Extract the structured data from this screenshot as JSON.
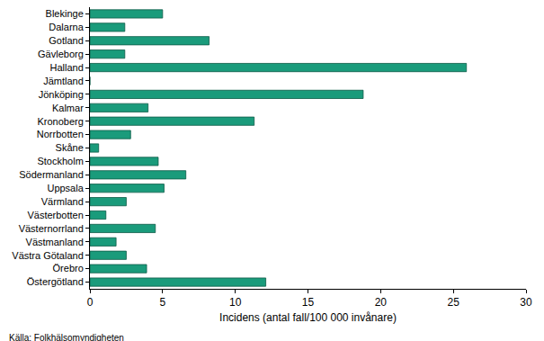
{
  "chart_data": {
    "type": "bar",
    "orientation": "horizontal",
    "categories": [
      "Blekinge",
      "Dalarna",
      "Gotland",
      "Gävleborg",
      "Halland",
      "Jämtland",
      "Jönköping",
      "Kalmar",
      "Kronoberg",
      "Norrbotten",
      "Skåne",
      "Stockholm",
      "Södermanland",
      "Uppsala",
      "Värmland",
      "Västerbotten",
      "Västernorrland",
      "Västmanland",
      "Västra Götaland",
      "Örebro",
      "Östergötland"
    ],
    "values": [
      5.0,
      2.4,
      8.2,
      2.4,
      25.9,
      0,
      18.8,
      4.0,
      11.3,
      2.8,
      0.6,
      4.7,
      6.6,
      5.1,
      2.5,
      1.1,
      4.5,
      1.8,
      2.5,
      3.9,
      12.1
    ],
    "color": "#1a9b7b",
    "xlabel": "Incidens (antal fall/100 000 invånare)",
    "annotation": "Källa: Folkhälsomyndigheten",
    "xlim": [
      0,
      30
    ],
    "xticks": [
      0,
      5,
      10,
      15,
      20,
      25,
      30
    ],
    "grid": false
  }
}
